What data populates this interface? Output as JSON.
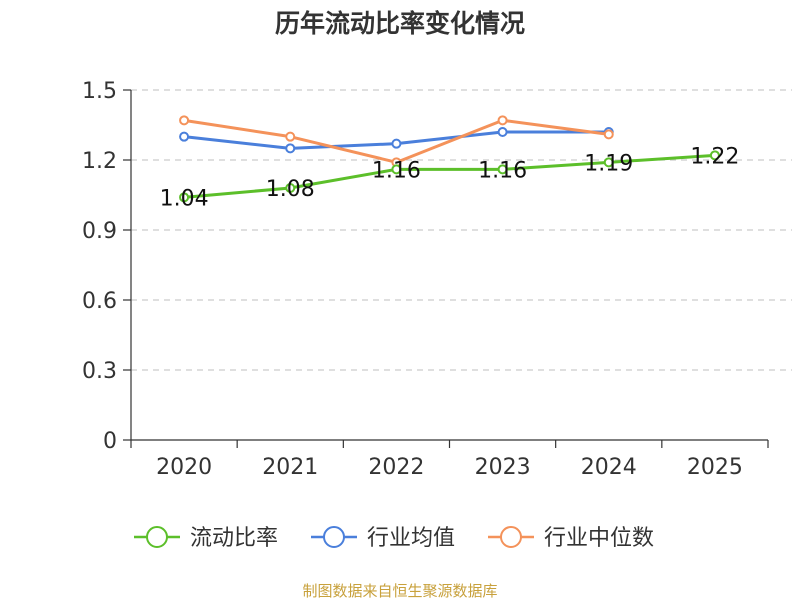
{
  "chart_data": {
    "type": "line",
    "title": "历年流动比率变化情况",
    "categories": [
      "2020",
      "2021",
      "2022",
      "2023",
      "2024",
      "2025"
    ],
    "ylim": [
      0,
      1.5
    ],
    "yticks": [
      0,
      0.3,
      0.6,
      0.9,
      1.2,
      1.5
    ],
    "ytick_labels": [
      "0",
      "0.3",
      "0.6",
      "0.9",
      "1.2",
      "1.5"
    ],
    "grid": true,
    "legend_position": "bottom",
    "series": [
      {
        "name": "流动比率",
        "color": "#5cbf2a",
        "values": [
          1.04,
          1.08,
          1.16,
          1.16,
          1.19,
          1.22
        ],
        "labels": [
          "1.04",
          "1.08",
          "1.16",
          "1.16",
          "1.19",
          "1.22"
        ],
        "show_labels": true
      },
      {
        "name": "行业均值",
        "color": "#4a7fdb",
        "values": [
          1.3,
          1.25,
          1.27,
          1.32,
          1.32,
          null
        ],
        "show_labels": false
      },
      {
        "name": "行业中位数",
        "color": "#f4925a",
        "values": [
          1.37,
          1.3,
          1.19,
          1.37,
          1.31,
          null
        ],
        "show_labels": false
      }
    ]
  },
  "source": "制图数据来自恒生聚源数据库",
  "colors": {
    "axis": "#333333",
    "grid": "#cccccc",
    "text": "#333333",
    "source": "#c8a13c"
  }
}
